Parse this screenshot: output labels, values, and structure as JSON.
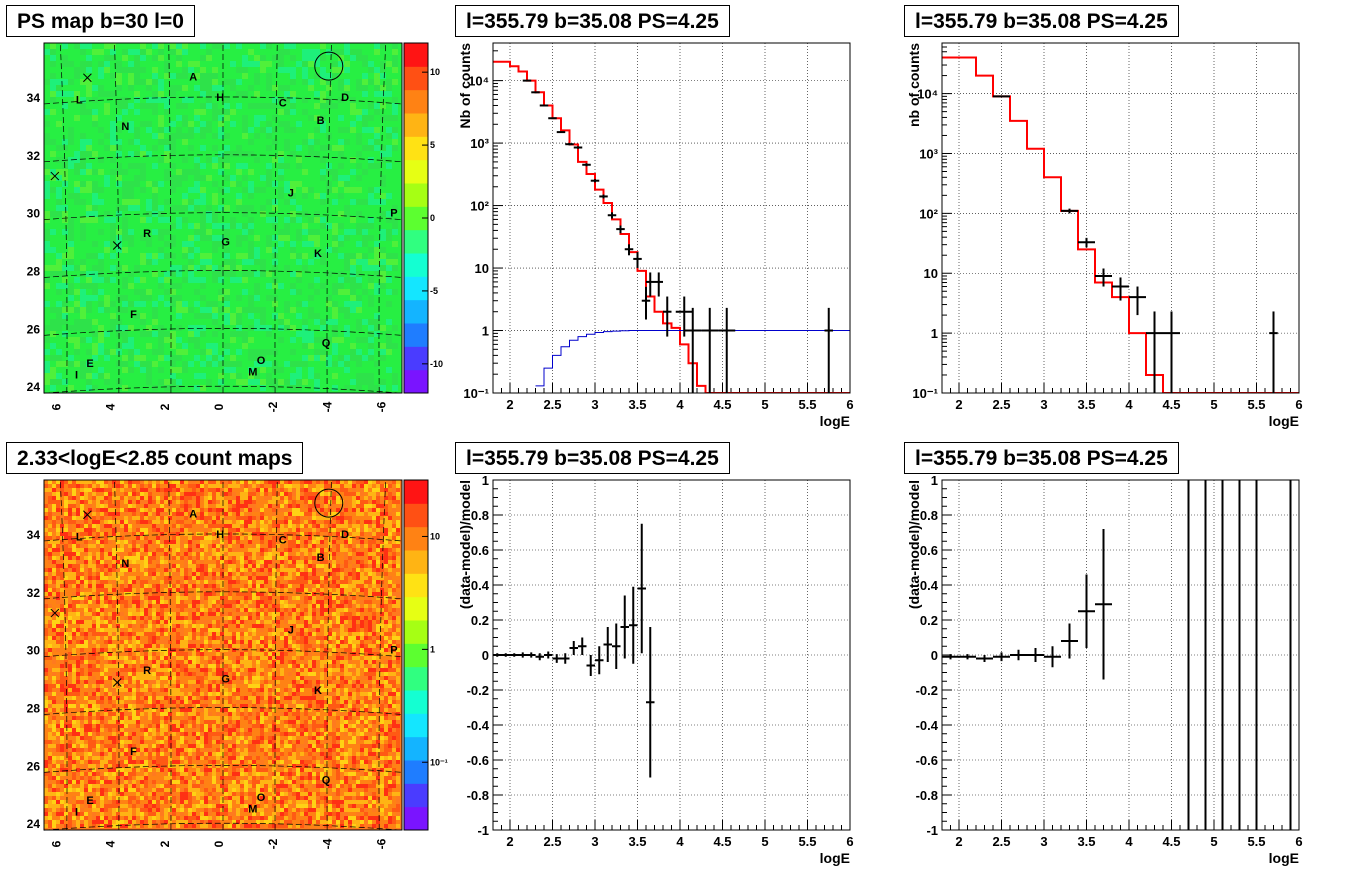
{
  "colors": {
    "frame": "#000000",
    "grid": "#000000",
    "model_line": "#ff0000",
    "exposure_line": "#0000cc",
    "data_marks": "#000000",
    "map_background_top": "#27ef43",
    "map_background_bottom": "#ff7a1e"
  },
  "panels": [
    {
      "id": "tl",
      "kind": "map",
      "title": "PS map b=30 l=0",
      "frame": "#000000",
      "chart_data": {
        "type": "heatmap",
        "title": "PS map b=30 l=0",
        "x_ticks": [
          "6",
          "4",
          "2",
          "0",
          "-2",
          "-4",
          "-6"
        ],
        "y_ticks": [
          "24",
          "26",
          "28",
          "30",
          "32",
          "34"
        ],
        "colorbar": {
          "scale": "linear",
          "ticks": [
            "10",
            "5",
            "0",
            "-5",
            "-10"
          ]
        },
        "source_labels": [
          {
            "label": "A",
            "l": 1.1,
            "b": 34.6
          },
          {
            "label": "L",
            "l": 5.3,
            "b": 33.8
          },
          {
            "label": "H",
            "l": 0.1,
            "b": 33.9
          },
          {
            "label": "C",
            "l": -2.2,
            "b": 33.7
          },
          {
            "label": "D",
            "l": -4.5,
            "b": 33.9
          },
          {
            "label": "B",
            "l": -3.6,
            "b": 33.1
          },
          {
            "label": "N",
            "l": 3.6,
            "b": 32.9
          },
          {
            "label": "J",
            "l": -2.5,
            "b": 30.6
          },
          {
            "label": "P",
            "l": -6.3,
            "b": 29.9
          },
          {
            "label": "R",
            "l": 2.8,
            "b": 29.2
          },
          {
            "label": "G",
            "l": -0.1,
            "b": 28.9
          },
          {
            "label": "K",
            "l": -3.5,
            "b": 28.5
          },
          {
            "label": "F",
            "l": 3.3,
            "b": 26.4
          },
          {
            "label": "Q",
            "l": -3.8,
            "b": 25.4
          },
          {
            "label": "O",
            "l": -1.4,
            "b": 24.8
          },
          {
            "label": "E",
            "l": 4.9,
            "b": 24.7
          },
          {
            "label": "M",
            "l": -1.1,
            "b": 24.4
          },
          {
            "label": "I",
            "l": 5.4,
            "b": 24.3
          }
        ]
      }
    },
    {
      "id": "tm",
      "kind": "spectrum",
      "title": "l=355.79 b=35.08 PS=4.25",
      "chart_data": {
        "type": "line",
        "title": "l=355.79 b=35.08 PS=4.25",
        "xlabel": "logE",
        "ylabel": "Nb of counts",
        "xlim": [
          1.8,
          6
        ],
        "ylim": [
          0.1,
          40000
        ],
        "yscale": "log",
        "x_ticks": [
          "2",
          "2.5",
          "3",
          "3.5",
          "4",
          "4.5",
          "5",
          "5.5",
          "6"
        ],
        "y_ticks": [
          "10⁻¹",
          "1",
          "10",
          "10²",
          "10³",
          "10⁴"
        ],
        "series": [
          {
            "name": "",
            "kind": "model_step",
            "edges": [
              1.8,
              1.9,
              2.0,
              2.1,
              2.2,
              2.3,
              2.4,
              2.5,
              2.6,
              2.7,
              2.8,
              2.9,
              3.0,
              3.1,
              3.2,
              3.3,
              3.4,
              3.5,
              3.6,
              3.7,
              3.8,
              3.9,
              4.0,
              4.1,
              4.2,
              4.3,
              6.0
            ],
            "values": [
              20000,
              20000,
              17000,
              14000,
              10000,
              6500,
              4000,
              2500,
              1600,
              950,
              500,
              320,
              180,
              110,
              60,
              35,
              18,
              9,
              3.5,
              2,
              1.3,
              1.1,
              0.6,
              0.3,
              0.13,
              0.1
            ]
          },
          {
            "name": "",
            "kind": "exposure_step",
            "edges": [
              2.3,
              2.4,
              2.5,
              2.6,
              2.7,
              2.8,
              2.9,
              3.0,
              3.1,
              3.2,
              3.3,
              3.4,
              3.5,
              6.0
            ],
            "values": [
              0.13,
              0.25,
              0.4,
              0.55,
              0.7,
              0.8,
              0.87,
              0.93,
              0.96,
              0.98,
              0.99,
              1.0,
              1.0
            ]
          },
          {
            "name": "",
            "kind": "data_points",
            "x": [
              2.2,
              2.3,
              2.4,
              2.5,
              2.6,
              2.7,
              2.8,
              2.9,
              3.0,
              3.1,
              3.2,
              3.3,
              3.4,
              3.5,
              3.6,
              3.65,
              3.75,
              3.85,
              4.05,
              4.15,
              4.35,
              4.55,
              5.75
            ],
            "y": [
              10000,
              6500,
              4000,
              2500,
              1500,
              960,
              850,
              450,
              250,
              140,
              70,
              42,
              20,
              14,
              3,
              6,
              6,
              2,
              2,
              1,
              1,
              1,
              1
            ],
            "xerr": [
              0.05,
              0.05,
              0.05,
              0.05,
              0.05,
              0.05,
              0.05,
              0.05,
              0.05,
              0.05,
              0.05,
              0.05,
              0.05,
              0.05,
              0.05,
              0.05,
              0.05,
              0.05,
              0.1,
              0.1,
              0.1,
              0.1,
              0.05
            ],
            "ylo": [
              9800,
              6300,
              3900,
              2450,
              1460,
              920,
              810,
              425,
              235,
              130,
              62,
              36,
              16,
              10,
              1.5,
              3.5,
              3.5,
              0.8,
              0.8,
              0.1,
              0.1,
              0.1,
              0.1
            ],
            "yhi": [
              10200,
              6700,
              4100,
              2550,
              1540,
              1000,
              890,
              475,
              265,
              150,
              78,
              48,
              24,
              18,
              5,
              8.5,
              8.5,
              3.5,
              3.5,
              2.3,
              2.3,
              2.3,
              2.3
            ]
          }
        ]
      }
    },
    {
      "id": "tr",
      "kind": "spectrum",
      "title": "l=355.79 b=35.08 PS=4.25",
      "chart_data": {
        "type": "line",
        "title": "l=355.79 b=35.08 PS=4.25",
        "xlabel": "logE",
        "ylabel": "nb of counts",
        "xlim": [
          1.8,
          6
        ],
        "ylim": [
          0.1,
          70000
        ],
        "yscale": "log",
        "x_ticks": [
          "2",
          "2.5",
          "3",
          "3.5",
          "4",
          "4.5",
          "5",
          "5.5",
          "6"
        ],
        "y_ticks": [
          "10⁻¹",
          "1",
          "10",
          "10²",
          "10³",
          "10⁴"
        ],
        "series": [
          {
            "name": "",
            "kind": "model_step",
            "edges": [
              1.8,
              2.0,
              2.2,
              2.4,
              2.6,
              2.8,
              3.0,
              3.2,
              3.4,
              3.6,
              3.8,
              4.0,
              4.2,
              4.4,
              6.0
            ],
            "values": [
              40000,
              40000,
              20000,
              9000,
              3500,
              1200,
              400,
              110,
              25,
              7,
              4,
              1,
              0.2,
              0.1
            ]
          },
          {
            "name": "",
            "kind": "data_points",
            "x": [
              2.5,
              3.3,
              3.5,
              3.7,
              3.9,
              4.1,
              4.3,
              4.5,
              5.7
            ],
            "y": [
              9000,
              110,
              33,
              9,
              6,
              4,
              1,
              1,
              1
            ],
            "xerr": [
              0.1,
              0.1,
              0.1,
              0.1,
              0.1,
              0.1,
              0.1,
              0.1,
              0.05
            ],
            "ylo": [
              8800,
              100,
              27,
              6,
              3.5,
              2,
              0.1,
              0.1,
              0.1
            ],
            "yhi": [
              9200,
              120,
              39,
              12,
              8.5,
              6,
              2.3,
              2.3,
              2.3
            ]
          }
        ]
      }
    },
    {
      "id": "bl",
      "kind": "map",
      "title": "2.33<logE<2.85 count maps",
      "frame": "#000000",
      "chart_data": {
        "type": "heatmap",
        "title": "2.33<logE<2.85 count maps",
        "x_ticks": [
          "6",
          "4",
          "2",
          "0",
          "-2",
          "-4",
          "-6"
        ],
        "y_ticks": [
          "24",
          "26",
          "28",
          "30",
          "32",
          "34"
        ],
        "colorbar": {
          "scale": "log",
          "ticks": [
            "10",
            "1",
            "10⁻¹"
          ]
        },
        "source_labels": [
          {
            "label": "A",
            "l": 1.1,
            "b": 34.6
          },
          {
            "label": "L",
            "l": 5.3,
            "b": 33.8
          },
          {
            "label": "H",
            "l": 0.1,
            "b": 33.9
          },
          {
            "label": "C",
            "l": -2.2,
            "b": 33.7
          },
          {
            "label": "D",
            "l": -4.5,
            "b": 33.9
          },
          {
            "label": "B",
            "l": -3.6,
            "b": 33.1
          },
          {
            "label": "N",
            "l": 3.6,
            "b": 32.9
          },
          {
            "label": "J",
            "l": -2.5,
            "b": 30.6
          },
          {
            "label": "P",
            "l": -6.3,
            "b": 29.9
          },
          {
            "label": "R",
            "l": 2.8,
            "b": 29.2
          },
          {
            "label": "G",
            "l": -0.1,
            "b": 28.9
          },
          {
            "label": "K",
            "l": -3.5,
            "b": 28.5
          },
          {
            "label": "F",
            "l": 3.3,
            "b": 26.4
          },
          {
            "label": "Q",
            "l": -3.8,
            "b": 25.4
          },
          {
            "label": "O",
            "l": -1.4,
            "b": 24.8
          },
          {
            "label": "E",
            "l": 4.9,
            "b": 24.7
          },
          {
            "label": "M",
            "l": -1.1,
            "b": 24.4
          },
          {
            "label": "I",
            "l": 5.4,
            "b": 24.3
          }
        ]
      }
    },
    {
      "id": "bm",
      "kind": "residual",
      "title": "l=355.79 b=35.08 PS=4.25",
      "chart_data": {
        "type": "scatter",
        "title": "l=355.79 b=35.08 PS=4.25",
        "xlabel": "logE",
        "ylabel": "(data-model)/model",
        "xlim": [
          1.8,
          6
        ],
        "ylim": [
          -1,
          1
        ],
        "x_ticks": [
          "2",
          "2.5",
          "3",
          "3.5",
          "4",
          "4.5",
          "5",
          "5.5",
          "6"
        ],
        "y_ticks": [
          "1",
          "0.8",
          "0.6",
          "0.4",
          "0.2",
          "0",
          "-0.2",
          "-0.4",
          "-0.6",
          "-0.8",
          "-1"
        ],
        "series": [
          {
            "name": "",
            "kind": "data_points",
            "x": [
              1.85,
              1.95,
              2.05,
              2.15,
              2.25,
              2.35,
              2.45,
              2.55,
              2.65,
              2.75,
              2.85,
              2.95,
              3.05,
              3.15,
              3.25,
              3.35,
              3.45,
              3.55,
              3.65
            ],
            "y": [
              0.0,
              0.0,
              0.0,
              0.0,
              0.0,
              -0.01,
              0.0,
              -0.02,
              -0.02,
              0.04,
              0.05,
              -0.06,
              -0.03,
              0.06,
              0.05,
              0.16,
              0.17,
              0.38,
              -0.27
            ],
            "xerr": [
              0.05,
              0.05,
              0.05,
              0.05,
              0.05,
              0.05,
              0.05,
              0.05,
              0.05,
              0.05,
              0.05,
              0.05,
              0.05,
              0.05,
              0.05,
              0.05,
              0.05,
              0.05,
              0.05
            ],
            "yerr": [
              0.01,
              0.01,
              0.01,
              0.015,
              0.015,
              0.02,
              0.02,
              0.025,
              0.03,
              0.04,
              0.05,
              0.06,
              0.08,
              0.1,
              0.13,
              0.18,
              0.22,
              0.37,
              0.43
            ]
          }
        ]
      }
    },
    {
      "id": "br",
      "kind": "residual",
      "title": "l=355.79 b=35.08 PS=4.25",
      "chart_data": {
        "type": "scatter",
        "title": "l=355.79 b=35.08 PS=4.25",
        "xlabel": "logE",
        "ylabel": "(data-model)/model",
        "xlim": [
          1.8,
          6
        ],
        "ylim": [
          -1,
          1
        ],
        "x_ticks": [
          "2",
          "2.5",
          "3",
          "3.5",
          "4",
          "4.5",
          "5",
          "5.5",
          "6"
        ],
        "y_ticks": [
          "1",
          "0.8",
          "0.6",
          "0.4",
          "0.2",
          "0",
          "-0.2",
          "-0.4",
          "-0.6",
          "-0.8",
          "-1"
        ],
        "series": [
          {
            "name": "",
            "kind": "data_points",
            "x": [
              1.9,
              2.1,
              2.3,
              2.5,
              2.7,
              2.9,
              3.1,
              3.3,
              3.5,
              3.7,
              4.7,
              4.9,
              5.1,
              5.3,
              5.5,
              5.9
            ],
            "y": [
              -0.01,
              -0.01,
              -0.02,
              -0.01,
              0.0,
              0.0,
              -0.01,
              0.08,
              0.25,
              0.29,
              0.9,
              0.9,
              0.9,
              0.9,
              0.9,
              0.9
            ],
            "xerr": [
              0.1,
              0.1,
              0.1,
              0.1,
              0.1,
              0.1,
              0.1,
              0.1,
              0.1,
              0.1,
              0,
              0,
              0,
              0,
              0,
              0
            ],
            "yerr": [
              0.015,
              0.015,
              0.02,
              0.025,
              0.03,
              0.04,
              0.06,
              0.1,
              0.21,
              0.43,
              1.9,
              1.9,
              1.9,
              1.9,
              1.9,
              1.9
            ]
          }
        ]
      }
    }
  ]
}
